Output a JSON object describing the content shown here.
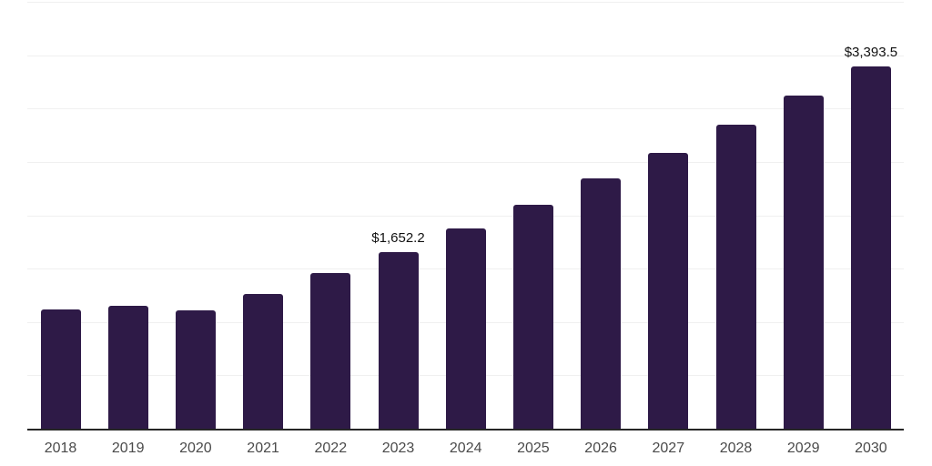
{
  "chart_data": {
    "type": "bar",
    "title": "",
    "xlabel": "",
    "ylabel": "",
    "categories": [
      "2018",
      "2019",
      "2020",
      "2021",
      "2022",
      "2023",
      "2024",
      "2025",
      "2026",
      "2027",
      "2028",
      "2029",
      "2030"
    ],
    "values": [
      1115,
      1148,
      1110,
      1266,
      1460,
      1652.2,
      1874,
      2101,
      2348,
      2586,
      2847,
      3125,
      3393.5
    ],
    "data_labels": [
      {
        "category": "2023",
        "text": "$1,652.2"
      },
      {
        "category": "2030",
        "text": "$3,393.5"
      }
    ],
    "ylim": [
      0,
      4000
    ],
    "gridline_step": 500,
    "grid": "horizontal-only",
    "y_tick_labels_visible": false,
    "legend": "none"
  },
  "colors": {
    "background": "#FFFFFF",
    "bar": "#2E1A47",
    "axis_line": "#262626",
    "gridline": "#F0F0F0",
    "x_tick_label": "#4A4A4A",
    "data_label": "#111111"
  }
}
